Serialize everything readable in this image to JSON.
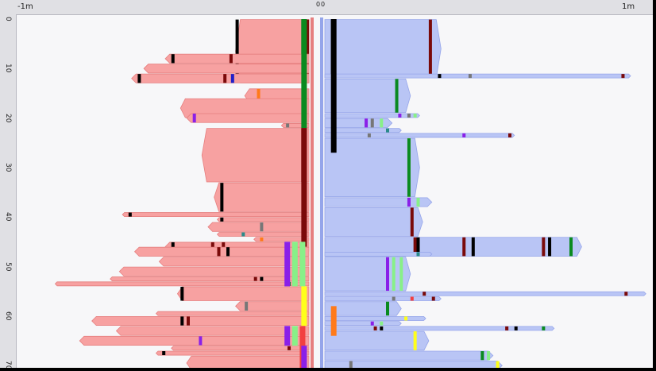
{
  "title": "",
  "x_axis": {
    "ticks": [
      "-1m",
      "0",
      "0",
      "1m"
    ]
  },
  "y_axis": {
    "ticks": [
      "0",
      "10",
      "20",
      "30",
      "40",
      "50",
      "60",
      "70"
    ]
  },
  "colors": {
    "left_fill": "#f7a1a1",
    "left_edge": "#e67f7f",
    "right_fill": "#b9c5f5",
    "right_edge": "#95a5ea",
    "black": "#000000",
    "darkred": "#7a0a0a",
    "green": "#0a8a20",
    "lightgreen": "#88f088",
    "purple": "#8a20e8",
    "gray": "#777777",
    "orange": "#ff7a1a",
    "yellow": "#ffff1a",
    "teal": "#2a8a8a",
    "blue": "#2020c8",
    "red": "#f24040"
  },
  "chart_data": {
    "type": "bar",
    "orientation": "horizontal-mirrored",
    "x_range_m": [
      -1.05,
      1.05
    ],
    "y_range": [
      -1,
      71
    ],
    "left_segments": [
      {
        "r0": 0,
        "r1": 13,
        "x": -0.24,
        "marks": [
          [
            "darkred",
            -0.01,
            0.02
          ],
          [
            "green",
            -0.025,
            0.01
          ],
          [
            "black",
            -0.24,
            0.02
          ]
        ]
      },
      {
        "r0": 7,
        "r1": 9,
        "x": -0.47,
        "marks": [
          [
            "black",
            -0.45,
            0.02
          ],
          [
            "darkred",
            -0.26,
            0.02
          ]
        ]
      },
      {
        "r0": 9,
        "r1": 11,
        "x": -0.54,
        "marks": []
      },
      {
        "r0": 11,
        "r1": 13,
        "x": -0.58,
        "marks": [
          [
            "black",
            -0.56,
            0.02
          ],
          [
            "darkred",
            -0.28,
            0.02
          ],
          [
            "blue",
            -0.255,
            0.02
          ]
        ]
      },
      {
        "r0": 14,
        "r1": 17,
        "x": -0.21,
        "marks": [
          [
            "orange",
            -0.17,
            0.02
          ]
        ]
      },
      {
        "r0": 16,
        "r1": 20,
        "x": -0.42,
        "marks": []
      },
      {
        "r0": 19,
        "r1": 21,
        "x": -0.4,
        "marks": [
          [
            "purple",
            -0.38,
            0.02
          ]
        ]
      },
      {
        "r0": 21,
        "r1": 22,
        "x": -0.09,
        "marks": [
          [
            "gray",
            -0.075,
            0.02
          ]
        ]
      },
      {
        "r0": 22,
        "r1": 33,
        "x": -0.35,
        "marks": [
          [
            "darkred",
            -0.025,
            0.02
          ]
        ]
      },
      {
        "r0": 33,
        "r1": 39,
        "x": -0.31,
        "marks": [
          [
            "black",
            -0.29,
            0.02
          ]
        ]
      },
      {
        "r0": 39,
        "r1": 40,
        "x": -0.61,
        "marks": [
          [
            "black",
            -0.59,
            0.02
          ]
        ]
      },
      {
        "r0": 40,
        "r1": 41,
        "x": -0.3,
        "marks": [
          [
            "black",
            -0.29,
            0.02
          ]
        ]
      },
      {
        "r0": 41,
        "r1": 43,
        "x": -0.33,
        "marks": [
          [
            "gray",
            -0.16,
            0.02
          ]
        ]
      },
      {
        "r0": 43,
        "r1": 44,
        "x": -0.3,
        "marks": [
          [
            "teal",
            -0.22,
            0.02
          ]
        ]
      },
      {
        "r0": 44,
        "r1": 45,
        "x": -0.18,
        "marks": [
          [
            "orange",
            -0.16,
            0.02
          ]
        ]
      },
      {
        "r0": 45,
        "r1": 47,
        "x": -0.47,
        "marks": [
          [
            "black",
            -0.45,
            0.02
          ],
          [
            "darkred",
            -0.32,
            0.02
          ],
          [
            "darkred",
            -0.285,
            0.02
          ]
        ]
      },
      {
        "r0": 46,
        "r1": 48,
        "x": -0.57,
        "marks": [
          [
            "darkred",
            -0.3,
            0.02
          ],
          [
            "black",
            -0.27,
            0.02
          ]
        ]
      },
      {
        "r0": 48,
        "r1": 50,
        "x": -0.49,
        "marks": []
      },
      {
        "r0": 50,
        "r1": 52,
        "x": -0.62,
        "marks": []
      },
      {
        "r0": 52,
        "r1": 53,
        "x": -0.65,
        "marks": [
          [
            "darkred",
            -0.18,
            0.02
          ],
          [
            "black",
            -0.16,
            0.02
          ]
        ]
      },
      {
        "r0": 53,
        "r1": 54,
        "x": -0.83,
        "marks": [
          [
            "green",
            -0.07,
            0.02
          ]
        ]
      },
      {
        "r0": 54,
        "r1": 57,
        "x": -0.43,
        "marks": [
          [
            "black",
            -0.42,
            0.02
          ]
        ]
      },
      {
        "r0": 57,
        "r1": 59,
        "x": -0.24,
        "marks": [
          [
            "gray",
            -0.21,
            0.02
          ]
        ]
      },
      {
        "r0": 59,
        "r1": 60,
        "x": -0.5,
        "marks": []
      },
      {
        "r0": 60,
        "r1": 62,
        "x": -0.71,
        "marks": [
          [
            "black",
            -0.42,
            0.02
          ],
          [
            "darkred",
            -0.4,
            0.02
          ]
        ]
      },
      {
        "r0": 62,
        "r1": 64,
        "x": -0.63,
        "marks": []
      },
      {
        "r0": 64,
        "r1": 66,
        "x": -0.75,
        "marks": [
          [
            "purple",
            -0.36,
            0.02
          ]
        ]
      },
      {
        "r0": 66,
        "r1": 67,
        "x": -0.45,
        "marks": [
          [
            "darkred",
            -0.07,
            0.02
          ]
        ]
      },
      {
        "r0": 67,
        "r1": 68,
        "x": -0.5,
        "marks": [
          [
            "black",
            -0.48,
            0.02
          ]
        ]
      },
      {
        "r0": 68,
        "r1": 71,
        "x": -0.4,
        "marks": []
      }
    ],
    "left_core_columns": [
      {
        "color": "green",
        "x": -0.025,
        "r0": 0,
        "r1": 22
      },
      {
        "color": "darkred",
        "x": -0.025,
        "r0": 22,
        "r1": 46
      },
      {
        "color": "purple",
        "x": -0.08,
        "r0": 45,
        "r1": 54
      },
      {
        "color": "lightgreen",
        "x": -0.055,
        "r0": 45,
        "r1": 54
      },
      {
        "color": "lightgreen",
        "x": -0.03,
        "r0": 45,
        "r1": 54
      },
      {
        "color": "yellow",
        "x": -0.025,
        "r0": 54,
        "r1": 62
      },
      {
        "color": "purple",
        "x": -0.08,
        "r0": 62,
        "r1": 66
      },
      {
        "color": "lightgreen",
        "x": -0.055,
        "r0": 62,
        "r1": 66
      },
      {
        "color": "red",
        "x": -0.03,
        "r0": 62,
        "r1": 71
      },
      {
        "color": "purple",
        "x": -0.025,
        "r0": 66,
        "r1": 71
      }
    ],
    "right_segments": [
      {
        "r0": 0,
        "r1": 12,
        "x": 0.38,
        "marks": [
          [
            "black",
            0.02,
            0.02
          ],
          [
            "darkred",
            0.34,
            0.02
          ]
        ]
      },
      {
        "r0": 11,
        "r1": 12,
        "x": 1.0,
        "marks": [
          [
            "black",
            0.37,
            0.02
          ],
          [
            "gray",
            0.47,
            0.02
          ],
          [
            "darkred",
            0.97,
            0.02
          ]
        ]
      },
      {
        "r0": 12,
        "r1": 19,
        "x": 0.28,
        "marks": [
          [
            "green",
            0.23,
            0.02
          ]
        ]
      },
      {
        "r0": 19,
        "r1": 20,
        "x": 0.31,
        "marks": [
          [
            "purple",
            0.24,
            0.02
          ],
          [
            "gray",
            0.27,
            0.02
          ],
          [
            "lightgreen",
            0.29,
            0.02
          ]
        ]
      },
      {
        "r0": 20,
        "r1": 22,
        "x": 0.22,
        "marks": [
          [
            "purple",
            0.13,
            0.02
          ],
          [
            "gray",
            0.15,
            0.02
          ],
          [
            "lightgreen",
            0.18,
            0.02
          ]
        ]
      },
      {
        "r0": 22,
        "r1": 23,
        "x": 0.25,
        "marks": [
          [
            "teal",
            0.2,
            0.02
          ]
        ]
      },
      {
        "r0": 23,
        "r1": 24,
        "x": 0.62,
        "marks": [
          [
            "gray",
            0.14,
            0.02
          ],
          [
            "purple",
            0.45,
            0.02
          ],
          [
            "darkred",
            0.6,
            0.02
          ]
        ]
      },
      {
        "r0": 24,
        "r1": 36,
        "x": 0.31,
        "marks": [
          [
            "yellow",
            0.27,
            0.02
          ],
          [
            "green",
            0.27,
            0.02
          ]
        ]
      },
      {
        "r0": 36,
        "r1": 38,
        "x": 0.35,
        "marks": [
          [
            "purple",
            0.27,
            0.02
          ],
          [
            "lightgreen",
            0.3,
            0.02
          ]
        ]
      },
      {
        "r0": 38,
        "r1": 44,
        "x": 0.32,
        "marks": [
          [
            "darkred",
            0.28,
            0.02
          ]
        ]
      },
      {
        "r0": 44,
        "r1": 48,
        "x": 0.84,
        "marks": [
          [
            "darkred",
            0.29,
            0.02
          ],
          [
            "black",
            0.3,
            0.02
          ],
          [
            "darkred",
            0.45,
            0.02
          ],
          [
            "black",
            0.48,
            0.02
          ],
          [
            "darkred",
            0.71,
            0.02
          ],
          [
            "black",
            0.73,
            0.02
          ],
          [
            "green",
            0.8,
            0.02
          ]
        ]
      },
      {
        "r0": 47,
        "r1": 48,
        "x": 0.35,
        "marks": [
          [
            "teal",
            0.3,
            0.02
          ]
        ]
      },
      {
        "r0": 48,
        "r1": 55,
        "x": 0.28,
        "marks": [
          [
            "purple",
            0.2,
            0.02
          ],
          [
            "lightgreen",
            0.22,
            0.02
          ],
          [
            "lightgreen",
            0.245,
            0.02
          ]
        ]
      },
      {
        "r0": 55,
        "r1": 56,
        "x": 1.05,
        "marks": [
          [
            "darkred",
            0.32,
            0.02
          ],
          [
            "darkred",
            0.98,
            0.02
          ]
        ]
      },
      {
        "r0": 56,
        "r1": 57,
        "x": 0.38,
        "marks": [
          [
            "gray",
            0.22,
            0.02
          ],
          [
            "red",
            0.28,
            0.02
          ],
          [
            "darkred",
            0.35,
            0.02
          ]
        ]
      },
      {
        "r0": 57,
        "r1": 60,
        "x": 0.25,
        "marks": [
          [
            "green",
            0.2,
            0.02
          ]
        ]
      },
      {
        "r0": 60,
        "r1": 61,
        "x": 0.33,
        "marks": [
          [
            "yellow",
            0.26,
            0.02
          ]
        ]
      },
      {
        "r0": 61,
        "r1": 62,
        "x": 0.25,
        "marks": [
          [
            "purple",
            0.15,
            0.02
          ],
          [
            "lightgreen",
            0.18,
            0.02
          ]
        ]
      },
      {
        "r0": 62,
        "r1": 63,
        "x": 0.75,
        "marks": [
          [
            "darkred",
            0.16,
            0.02
          ],
          [
            "black",
            0.18,
            0.02
          ],
          [
            "darkred",
            0.59,
            0.02
          ],
          [
            "black",
            0.62,
            0.02
          ],
          [
            "green",
            0.71,
            0.02
          ]
        ]
      },
      {
        "r0": 63,
        "r1": 67,
        "x": 0.34,
        "marks": [
          [
            "yellow",
            0.29,
            0.02
          ]
        ]
      },
      {
        "r0": 67,
        "r1": 69,
        "x": 0.55,
        "marks": [
          [
            "green",
            0.51,
            0.02
          ],
          [
            "lightgreen",
            0.53,
            0.02
          ]
        ]
      },
      {
        "r0": 69,
        "r1": 71,
        "x": 0.58,
        "marks": [
          [
            "gray",
            0.08,
            0.02
          ],
          [
            "yellow",
            0.56,
            0.02
          ]
        ]
      }
    ],
    "right_core_columns": [
      {
        "color": "black",
        "x": 0.02,
        "r0": 0,
        "r1": 27
      },
      {
        "color": "orange",
        "x": 0.02,
        "r0": 58,
        "r1": 64
      }
    ]
  }
}
